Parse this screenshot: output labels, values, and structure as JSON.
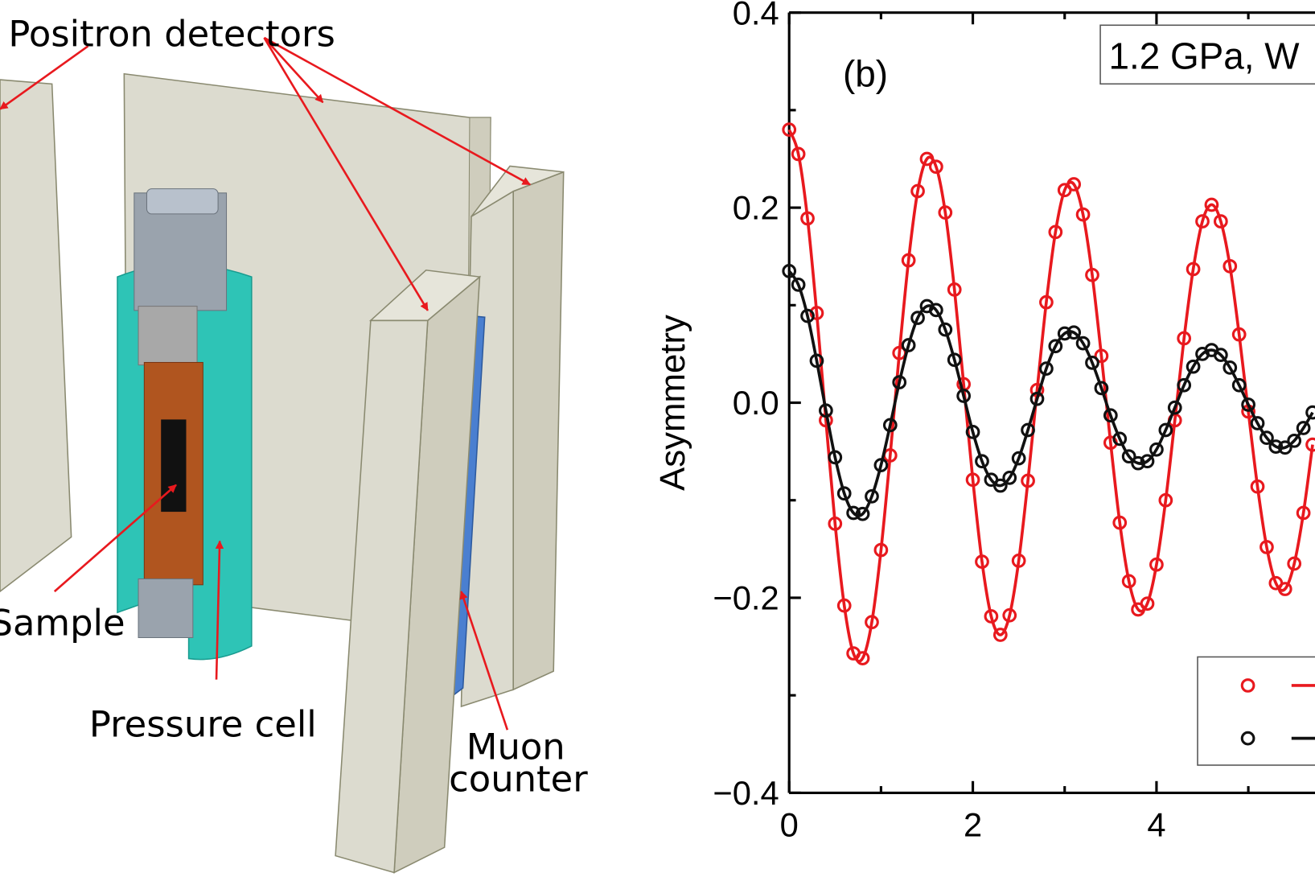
{
  "diagram": {
    "labels": [
      "Positron detectors",
      "Sample",
      "Pressure cell",
      "Muon",
      "counter"
    ]
  },
  "chart_data": {
    "type": "scatter",
    "panel_label": "(b)",
    "annotation": "1.2 GPa, W",
    "ylabel": "Asymmetry",
    "x": [
      0,
      0.1,
      0.2,
      0.3,
      0.4,
      0.5,
      0.6,
      0.7,
      0.8,
      0.9,
      1.0,
      1.1,
      1.2,
      1.3,
      1.4,
      1.5,
      1.6,
      1.7,
      1.8,
      1.9,
      2.0,
      2.1,
      2.2,
      2.3,
      2.4,
      2.5,
      2.6,
      2.7,
      2.8,
      2.9,
      3.0,
      3.1,
      3.2,
      3.3,
      3.4,
      3.5,
      3.6,
      3.7,
      3.8,
      3.9,
      4.0,
      4.1,
      4.2,
      4.3,
      4.4,
      4.5,
      4.6,
      4.7,
      4.8,
      4.9,
      5.0,
      5.1,
      5.2,
      5.3,
      5.4,
      5.5,
      5.6,
      5.7
    ],
    "series": [
      {
        "color": "#e8191e",
        "values": [
          0.28,
          0.255,
          0.189,
          0.092,
          -0.018,
          -0.124,
          -0.208,
          -0.257,
          -0.262,
          -0.225,
          -0.151,
          -0.054,
          0.051,
          0.146,
          0.217,
          0.25,
          0.242,
          0.195,
          0.116,
          0.019,
          -0.079,
          -0.163,
          -0.219,
          -0.238,
          -0.218,
          -0.162,
          -0.08,
          0.013,
          0.103,
          0.175,
          0.218,
          0.224,
          0.193,
          0.131,
          0.048,
          -0.041,
          -0.123,
          -0.183,
          -0.212,
          -0.206,
          -0.166,
          -0.1,
          -0.018,
          0.066,
          0.137,
          0.186,
          0.203,
          0.186,
          0.14,
          0.07,
          -0.009,
          -0.086,
          -0.148,
          -0.185,
          -0.191,
          -0.165,
          -0.113,
          -0.043
        ]
      },
      {
        "color": "#111111",
        "values": [
          0.135,
          0.121,
          0.089,
          0.043,
          -0.008,
          -0.056,
          -0.093,
          -0.113,
          -0.114,
          -0.096,
          -0.064,
          -0.023,
          0.021,
          0.059,
          0.087,
          0.099,
          0.095,
          0.075,
          0.044,
          0.007,
          -0.03,
          -0.06,
          -0.079,
          -0.085,
          -0.077,
          -0.057,
          -0.028,
          0.004,
          0.035,
          0.058,
          0.071,
          0.072,
          0.061,
          0.041,
          0.015,
          -0.013,
          -0.037,
          -0.055,
          -0.062,
          -0.06,
          -0.048,
          -0.028,
          -0.005,
          0.018,
          0.037,
          0.05,
          0.054,
          0.049,
          0.036,
          0.018,
          -0.002,
          -0.021,
          -0.036,
          -0.045,
          -0.046,
          -0.039,
          -0.026,
          -0.01
        ]
      }
    ],
    "xlim": [
      0,
      5.73
    ],
    "xticks": [
      0,
      2,
      4
    ],
    "xminorticks": [
      1,
      3,
      5
    ],
    "ylim": [
      -0.4,
      0.4
    ],
    "yticks": [
      {
        "value": -0.4,
        "label": "−0.4"
      },
      {
        "value": -0.2,
        "label": "−0.2"
      },
      {
        "value": 0,
        "label": "0.0"
      },
      0.2,
      0.4
    ],
    "yminorticks": [
      -0.3,
      -0.1,
      0.1,
      0.3
    ],
    "legend": "lower right"
  }
}
